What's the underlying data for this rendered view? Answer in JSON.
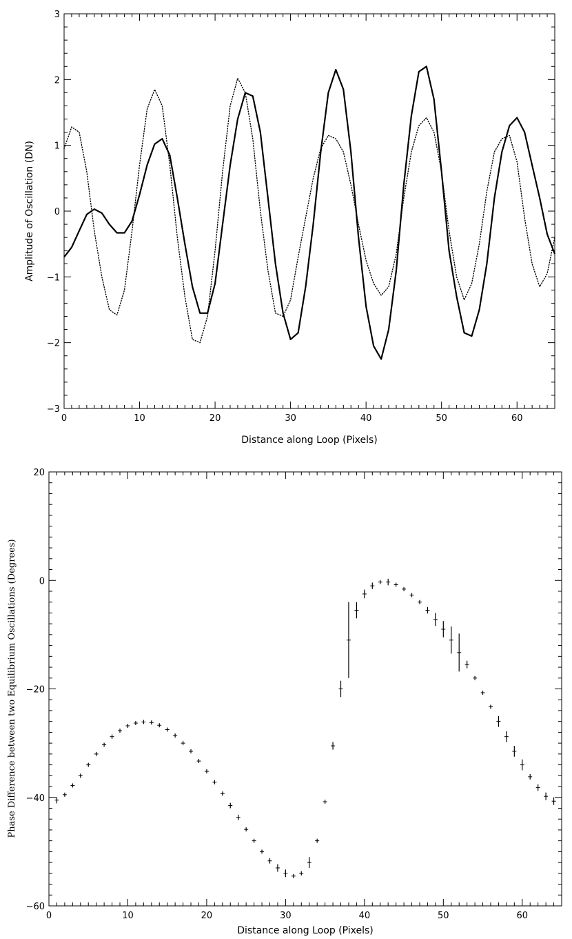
{
  "chart_data": [
    {
      "type": "line",
      "xlabel": "Distance along Loop (Pixels)",
      "ylabel": "Amplitude of Oscillation (DN)",
      "xlim": [
        0,
        65
      ],
      "ylim": [
        -3,
        3
      ],
      "xticks": [
        0,
        10,
        20,
        30,
        40,
        50,
        60
      ],
      "yticks": [
        -3,
        -2,
        -1,
        0,
        1,
        2,
        3
      ],
      "grid": false,
      "series": [
        {
          "style": "solid",
          "color": "#000000",
          "x": [
            0,
            1,
            2,
            3,
            4,
            5,
            6,
            7,
            8,
            9,
            10,
            11,
            12,
            13,
            14,
            15,
            16,
            17,
            18,
            19,
            20,
            21,
            22,
            23,
            24,
            25,
            26,
            27,
            28,
            29,
            30,
            31,
            32,
            33,
            34,
            35,
            36,
            37,
            38,
            39,
            40,
            41,
            42,
            43,
            44,
            45,
            46,
            47,
            48,
            49,
            50,
            51,
            52,
            53,
            54,
            55,
            56,
            57,
            58,
            59,
            60,
            61,
            62,
            63,
            64,
            65
          ],
          "y": [
            -0.7,
            -0.55,
            -0.3,
            -0.05,
            0.03,
            -0.03,
            -0.2,
            -0.33,
            -0.33,
            -0.15,
            0.25,
            0.7,
            1.02,
            1.1,
            0.85,
            0.2,
            -0.5,
            -1.15,
            -1.55,
            -1.55,
            -1.1,
            -0.2,
            0.7,
            1.4,
            1.8,
            1.75,
            1.2,
            0.2,
            -0.8,
            -1.55,
            -1.95,
            -1.85,
            -1.15,
            -0.2,
            0.9,
            1.8,
            2.15,
            1.85,
            0.9,
            -0.4,
            -1.45,
            -2.05,
            -2.25,
            -1.8,
            -0.9,
            0.4,
            1.45,
            2.12,
            2.2,
            1.7,
            0.6,
            -0.6,
            -1.3,
            -1.85,
            -1.9,
            -1.5,
            -0.8,
            0.2,
            0.9,
            1.3,
            1.42,
            1.2,
            0.7,
            0.2,
            -0.35,
            -0.65
          ]
        },
        {
          "style": "dotted",
          "color": "#000000",
          "x": [
            0,
            1,
            2,
            3,
            4,
            5,
            6,
            7,
            8,
            9,
            10,
            11,
            12,
            13,
            14,
            15,
            16,
            17,
            18,
            19,
            20,
            21,
            22,
            23,
            24,
            25,
            26,
            27,
            28,
            29,
            30,
            31,
            32,
            33,
            34,
            35,
            36,
            37,
            38,
            39,
            40,
            41,
            42,
            43,
            44,
            45,
            46,
            47,
            48,
            49,
            50,
            51,
            52,
            53,
            54,
            55,
            56,
            57,
            58,
            59,
            60,
            61,
            62,
            63,
            64,
            65
          ],
          "y": [
            0.95,
            1.28,
            1.2,
            0.6,
            -0.3,
            -1.0,
            -1.5,
            -1.58,
            -1.2,
            -0.3,
            0.7,
            1.55,
            1.85,
            1.6,
            0.7,
            -0.4,
            -1.3,
            -1.95,
            -2.0,
            -1.6,
            -0.6,
            0.6,
            1.6,
            2.02,
            1.8,
            1.1,
            0.0,
            -0.9,
            -1.55,
            -1.6,
            -1.35,
            -0.7,
            -0.1,
            0.5,
            0.95,
            1.15,
            1.1,
            0.9,
            0.4,
            -0.2,
            -0.75,
            -1.1,
            -1.28,
            -1.15,
            -0.65,
            0.2,
            0.9,
            1.3,
            1.42,
            1.2,
            0.6,
            -0.3,
            -1.0,
            -1.35,
            -1.1,
            -0.5,
            0.3,
            0.9,
            1.1,
            1.15,
            0.75,
            -0.1,
            -0.8,
            -1.15,
            -0.95,
            -0.4
          ]
        }
      ]
    },
    {
      "type": "scatter",
      "xlabel": "Distance along Loop (Pixels)",
      "ylabel": "Phase Difference between two Equilibrium Oscillations (Degrees)",
      "xlim": [
        0,
        65
      ],
      "ylim": [
        -60,
        20
      ],
      "xticks": [
        0,
        10,
        20,
        30,
        40,
        50,
        60
      ],
      "yticks": [
        -60,
        -40,
        -20,
        0,
        20
      ],
      "grid": false,
      "marker": "plus",
      "x": [
        1,
        2,
        3,
        4,
        5,
        6,
        7,
        8,
        9,
        10,
        11,
        12,
        13,
        14,
        15,
        16,
        17,
        18,
        19,
        20,
        21,
        22,
        23,
        24,
        25,
        26,
        27,
        28,
        29,
        30,
        31,
        32,
        33,
        34,
        35,
        36,
        37,
        38,
        39,
        40,
        41,
        42,
        43,
        44,
        45,
        46,
        47,
        48,
        49,
        50,
        51,
        52,
        53,
        54,
        55,
        56,
        57,
        58,
        59,
        60,
        61,
        62,
        63,
        64
      ],
      "y": [
        -40.5,
        -39.5,
        -37.8,
        -36.0,
        -34.0,
        -32.0,
        -30.3,
        -28.8,
        -27.7,
        -26.8,
        -26.3,
        -26.1,
        -26.2,
        -26.7,
        -27.5,
        -28.6,
        -30.0,
        -31.5,
        -33.3,
        -35.2,
        -37.2,
        -39.3,
        -41.5,
        -43.7,
        -45.9,
        -48.0,
        -50.0,
        -51.7,
        -53.0,
        -54.0,
        -54.5,
        -54.0,
        -52.0,
        -48.0,
        -40.8,
        -30.5,
        -20.0,
        -11.0,
        -5.5,
        -2.5,
        -1.0,
        -0.3,
        -0.3,
        -0.8,
        -1.6,
        -2.7,
        -4.0,
        -5.5,
        -7.2,
        -9.0,
        -11.0,
        -13.3,
        -15.5,
        -18.0,
        -20.7,
        -23.3,
        -26.0,
        -28.8,
        -31.5,
        -34.0,
        -36.2,
        -38.2,
        -39.8,
        -40.7
      ],
      "errors": [
        0.6,
        0.3,
        0.3,
        0.3,
        0.3,
        0.3,
        0.3,
        0.4,
        0.3,
        0.3,
        0.3,
        0.3,
        0.3,
        0.3,
        0.3,
        0.3,
        0.3,
        0.3,
        0.3,
        0.3,
        0.3,
        0.3,
        0.5,
        0.5,
        0.3,
        0.3,
        0.3,
        0.5,
        0.7,
        0.7,
        0.3,
        0.3,
        1.0,
        0.3,
        0.3,
        0.7,
        1.5,
        7.0,
        1.5,
        0.8,
        0.6,
        0.3,
        0.6,
        0.3,
        0.3,
        0.3,
        0.3,
        0.6,
        1.2,
        1.5,
        2.5,
        3.5,
        0.7,
        0.3,
        0.3,
        0.3,
        1.0,
        1.0,
        1.0,
        1.0,
        0.5,
        0.6,
        0.7,
        0.7
      ]
    }
  ]
}
